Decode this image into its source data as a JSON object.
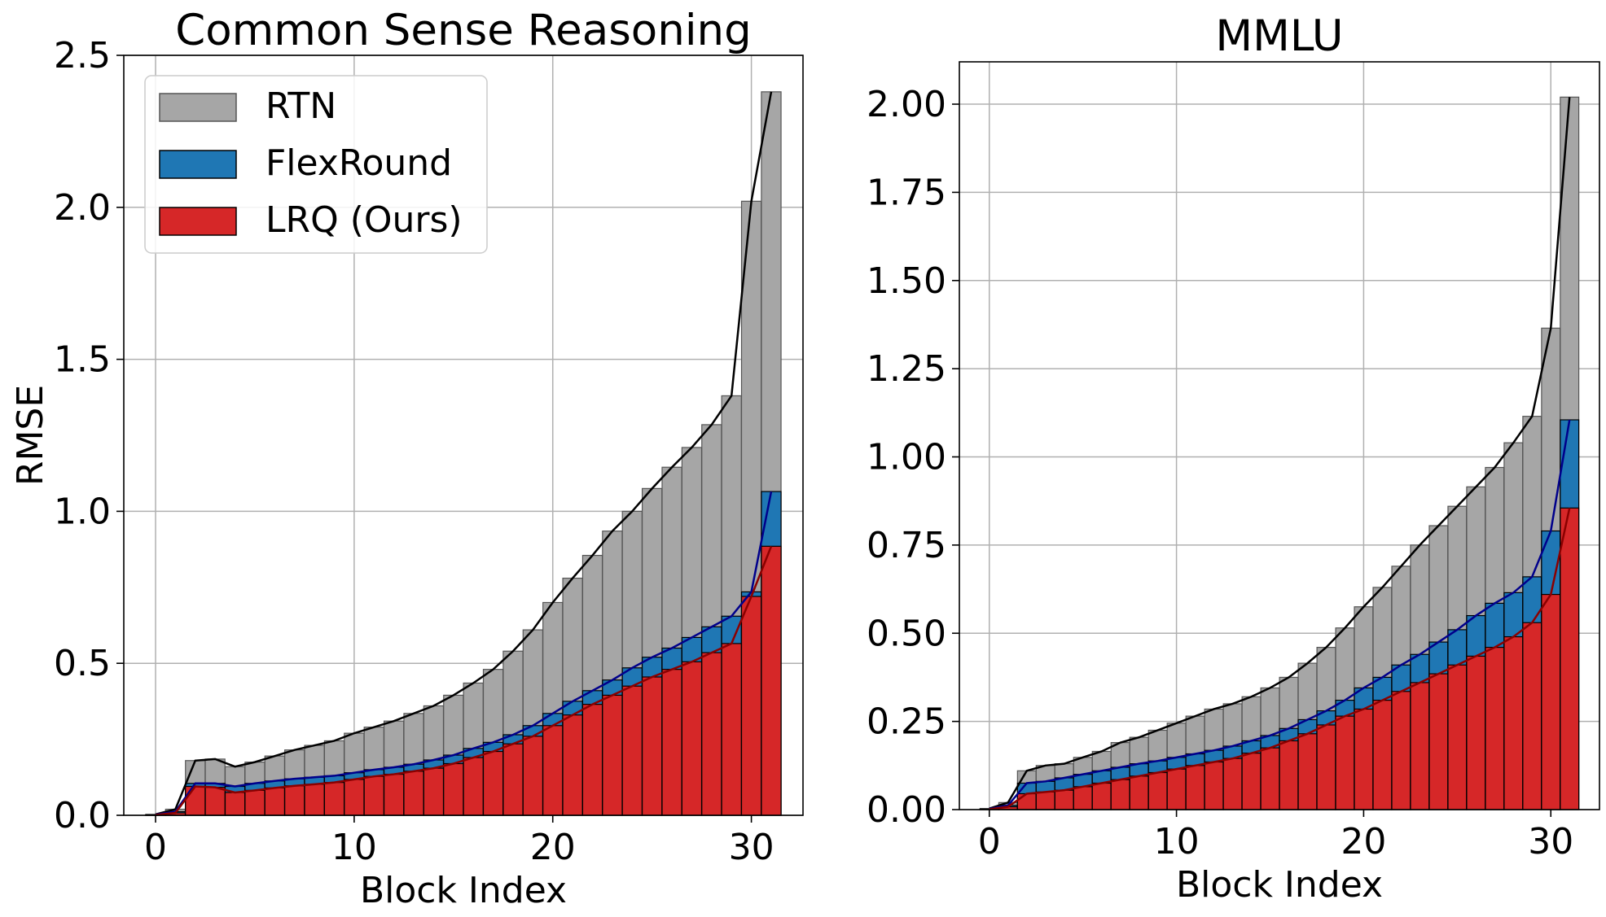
{
  "chart_data": [
    {
      "type": "bar",
      "title": "Common Sense Reasoning",
      "xlabel": "Block Index",
      "ylabel": "RMSE",
      "xlim": [
        -1.6,
        32.6
      ],
      "ylim": [
        0,
        2.5
      ],
      "xticks": [
        0,
        10,
        20,
        30
      ],
      "xtick_labels": [
        "0",
        "10",
        "20",
        "30"
      ],
      "yticks": [
        0,
        0.5,
        1.0,
        1.5,
        2.0,
        2.5
      ],
      "ytick_labels": [
        "0.0",
        "0.5",
        "1.0",
        "1.5",
        "2.0",
        "2.5"
      ],
      "grid": true,
      "legend_position": "upper-left",
      "x": [
        0,
        1,
        2,
        3,
        4,
        5,
        6,
        7,
        8,
        9,
        10,
        11,
        12,
        13,
        14,
        15,
        16,
        17,
        18,
        19,
        20,
        21,
        22,
        23,
        24,
        25,
        26,
        27,
        28,
        29,
        30,
        31
      ],
      "series": [
        {
          "name": "RTN",
          "color": "#a6a6a6",
          "values": [
            0.003,
            0.02,
            0.18,
            0.185,
            0.16,
            0.175,
            0.195,
            0.215,
            0.23,
            0.245,
            0.27,
            0.29,
            0.31,
            0.335,
            0.36,
            0.395,
            0.435,
            0.48,
            0.54,
            0.61,
            0.7,
            0.78,
            0.855,
            0.935,
            1.0,
            1.075,
            1.145,
            1.21,
            1.285,
            1.38,
            2.02,
            2.38
          ]
        },
        {
          "name": "FlexRound",
          "color": "#1f77b4",
          "values": [
            0.002,
            0.012,
            0.105,
            0.105,
            0.095,
            0.105,
            0.113,
            0.12,
            0.125,
            0.13,
            0.14,
            0.15,
            0.158,
            0.168,
            0.182,
            0.198,
            0.22,
            0.24,
            0.265,
            0.295,
            0.335,
            0.375,
            0.41,
            0.445,
            0.485,
            0.52,
            0.55,
            0.585,
            0.62,
            0.655,
            0.735,
            1.065
          ]
        },
        {
          "name": "LRQ (Ours)",
          "color": "#d62728",
          "values": [
            0.001,
            0.008,
            0.095,
            0.092,
            0.075,
            0.082,
            0.09,
            0.097,
            0.102,
            0.108,
            0.118,
            0.128,
            0.135,
            0.145,
            0.155,
            0.17,
            0.19,
            0.21,
            0.235,
            0.26,
            0.295,
            0.33,
            0.365,
            0.395,
            0.425,
            0.455,
            0.48,
            0.505,
            0.535,
            0.565,
            0.72,
            0.885
          ]
        }
      ]
    },
    {
      "type": "bar",
      "title": "MMLU",
      "xlabel": "Block Index",
      "ylabel": "",
      "xlim": [
        -1.6,
        32.6
      ],
      "ylim": [
        0,
        2.12
      ],
      "xticks": [
        0,
        10,
        20,
        30
      ],
      "xtick_labels": [
        "0",
        "10",
        "20",
        "30"
      ],
      "yticks": [
        0,
        0.25,
        0.5,
        0.75,
        1.0,
        1.25,
        1.5,
        1.75,
        2.0
      ],
      "ytick_labels": [
        "0.00",
        "0.25",
        "0.50",
        "0.75",
        "1.00",
        "1.25",
        "1.50",
        "1.75",
        "2.00"
      ],
      "grid": true,
      "x": [
        0,
        1,
        2,
        3,
        4,
        5,
        6,
        7,
        8,
        9,
        10,
        11,
        12,
        13,
        14,
        15,
        16,
        17,
        18,
        19,
        20,
        21,
        22,
        23,
        24,
        25,
        26,
        27,
        28,
        29,
        30,
        31
      ],
      "series": [
        {
          "name": "RTN",
          "color": "#a6a6a6",
          "values": [
            0.003,
            0.02,
            0.11,
            0.125,
            0.13,
            0.148,
            0.165,
            0.19,
            0.205,
            0.225,
            0.245,
            0.265,
            0.285,
            0.3,
            0.32,
            0.345,
            0.375,
            0.415,
            0.46,
            0.515,
            0.575,
            0.63,
            0.69,
            0.75,
            0.805,
            0.86,
            0.915,
            0.97,
            1.04,
            1.115,
            1.365,
            2.02
          ]
        },
        {
          "name": "FlexRound",
          "color": "#1f77b4",
          "values": [
            0.002,
            0.012,
            0.075,
            0.08,
            0.09,
            0.1,
            0.11,
            0.12,
            0.13,
            0.138,
            0.148,
            0.158,
            0.168,
            0.18,
            0.195,
            0.21,
            0.23,
            0.255,
            0.28,
            0.31,
            0.345,
            0.375,
            0.41,
            0.44,
            0.475,
            0.51,
            0.55,
            0.585,
            0.615,
            0.66,
            0.79,
            1.105
          ]
        },
        {
          "name": "LRQ (Ours)",
          "color": "#d62728",
          "values": [
            0.001,
            0.008,
            0.045,
            0.05,
            0.055,
            0.065,
            0.075,
            0.085,
            0.095,
            0.105,
            0.115,
            0.125,
            0.135,
            0.145,
            0.16,
            0.175,
            0.195,
            0.215,
            0.24,
            0.265,
            0.285,
            0.31,
            0.335,
            0.36,
            0.385,
            0.41,
            0.435,
            0.46,
            0.49,
            0.53,
            0.61,
            0.855
          ]
        }
      ]
    }
  ]
}
